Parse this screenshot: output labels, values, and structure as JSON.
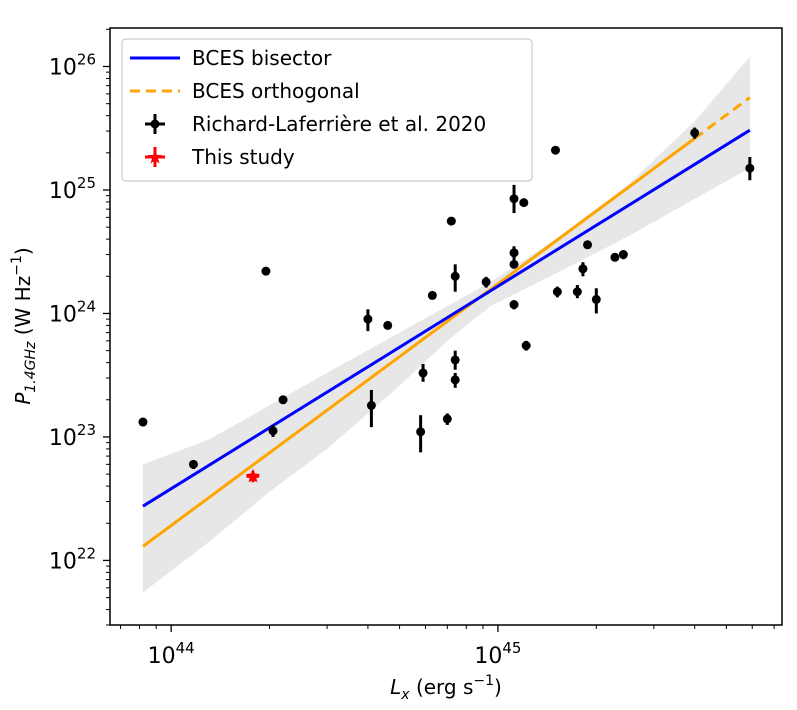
{
  "chart_data": {
    "type": "scatter",
    "x_scale": "log",
    "y_scale": "log",
    "xlim": [
      6.5e+43,
      7.4e+45
    ],
    "ylim": [
      3e+21,
      2.05e+26
    ],
    "xlabel": {
      "main": "L",
      "sub": "x",
      "rest": " (erg s",
      "sup": "−1",
      "close": ")"
    },
    "ylabel": {
      "main": "P",
      "sub": "1.4GHz",
      "rest": " (W Hz",
      "sup": "−1",
      "close": ")"
    },
    "x_ticks": [
      {
        "value": 1e+44,
        "base": "10",
        "exp": "44"
      },
      {
        "value": 1e+45,
        "base": "10",
        "exp": "45"
      }
    ],
    "y_ticks": [
      {
        "value": 1e+22,
        "base": "10",
        "exp": "22"
      },
      {
        "value": 1e+23,
        "base": "10",
        "exp": "23"
      },
      {
        "value": 1e+24,
        "base": "10",
        "exp": "24"
      },
      {
        "value": 1e+25,
        "base": "10",
        "exp": "25"
      },
      {
        "value": 1e+26,
        "base": "10",
        "exp": "26"
      }
    ],
    "legend": {
      "position": "top-left",
      "entries": [
        {
          "key": "bisector",
          "label": "BCES bisector",
          "style": "line",
          "color": "#0000ff"
        },
        {
          "key": "orthogonal",
          "label": "BCES orthogonal",
          "style": "dashed",
          "color": "#ffa500"
        },
        {
          "key": "richard",
          "label": "Richard-Laferrière et al. 2020",
          "style": "errorbar",
          "color": "#000000"
        },
        {
          "key": "thisstudy",
          "label": "This study",
          "style": "errorbar",
          "color": "#ff0000"
        }
      ]
    },
    "fits": {
      "bisector": {
        "x": [
          8.2e+43,
          5.9e+45
        ],
        "y": [
          2.75e+22,
          3.05e+25
        ],
        "color": "#0000ff"
      },
      "orthogonal": {
        "x": [
          8.2e+43,
          5.9e+45
        ],
        "y": [
          1.3e+22,
          5.6e+25
        ],
        "color": "#ffa500",
        "dash_from_x": 4e+45
      },
      "band": {
        "x": [
          8.2e+43,
          1.3e+44,
          2e+44,
          3e+44,
          5e+44,
          7e+44,
          9.5e+44,
          1.5e+45,
          2.5e+45,
          4e+45,
          5.9e+45
        ],
        "upper": [
          6e+22,
          9.5e+22,
          1.8e+23,
          3.3e+23,
          7e+23,
          1.15e+24,
          1.8e+24,
          4e+24,
          1.1e+25,
          3.6e+25,
          1.2e+26
        ],
        "lower": [
          5.5e+21,
          1.4e+22,
          3.6e+22,
          8e+22,
          2.6e+23,
          6e+23,
          1.15e+24,
          2.1e+24,
          4.2e+24,
          8.5e+24,
          1.5e+25
        ],
        "color": "#d3d3d3"
      }
    },
    "series": [
      {
        "name": "Richard-Laferrière et al. 2020",
        "color": "#000000",
        "points": [
          {
            "x": 8.2e+43,
            "y": 1.32e+23,
            "ylo": 1.22e+23,
            "yhi": 1.42e+23
          },
          {
            "x": 1.17e+44,
            "y": 6e+22,
            "ylo": 5.5e+22,
            "yhi": 6.5e+22
          },
          {
            "x": 1.95e+44,
            "y": 2.2e+24
          },
          {
            "x": 2.05e+44,
            "y": 1.12e+23,
            "ylo": 1e+23,
            "yhi": 1.25e+23
          },
          {
            "x": 2.2e+44,
            "y": 2e+23
          },
          {
            "x": 4e+44,
            "y": 9e+23,
            "ylo": 7.2e+23,
            "yhi": 1.08e+24
          },
          {
            "x": 4.1e+44,
            "y": 1.8e+23,
            "ylo": 1.2e+23,
            "yhi": 2.4e+23
          },
          {
            "x": 4.6e+44,
            "y": 8e+23
          },
          {
            "x": 5.8e+44,
            "y": 1.1e+23,
            "ylo": 7.5e+22,
            "yhi": 1.5e+23
          },
          {
            "x": 5.9e+44,
            "y": 3.3e+23,
            "ylo": 2.8e+23,
            "yhi": 3.9e+23
          },
          {
            "x": 6.3e+44,
            "y": 1.4e+24
          },
          {
            "x": 7e+44,
            "y": 1.4e+23,
            "ylo": 1.25e+23,
            "yhi": 1.55e+23
          },
          {
            "x": 7.2e+44,
            "y": 5.6e+24
          },
          {
            "x": 7.4e+44,
            "y": 2e+24,
            "ylo": 1.5e+24,
            "yhi": 2.5e+24
          },
          {
            "x": 7.4e+44,
            "y": 4.2e+23,
            "ylo": 3.5e+23,
            "yhi": 5e+23
          },
          {
            "x": 7.4e+44,
            "y": 2.9e+23,
            "ylo": 2.5e+23,
            "yhi": 3.3e+23
          },
          {
            "x": 9.2e+44,
            "y": 1.8e+24,
            "ylo": 1.62e+24,
            "yhi": 1.98e+24
          },
          {
            "x": 1.12e+45,
            "y": 8.5e+24,
            "ylo": 6.5e+24,
            "yhi": 1.1e+25
          },
          {
            "x": 1.12e+45,
            "y": 3.1e+24,
            "ylo": 2.7e+24,
            "yhi": 3.5e+24
          },
          {
            "x": 1.12e+45,
            "y": 2.5e+24
          },
          {
            "x": 1.12e+45,
            "y": 1.18e+24,
            "ylo": 1.08e+24,
            "yhi": 1.28e+24
          },
          {
            "x": 1.2e+45,
            "y": 7.9e+24
          },
          {
            "x": 1.22e+45,
            "y": 5.5e+23,
            "ylo": 5e+23,
            "yhi": 6e+23
          },
          {
            "x": 1.5e+45,
            "y": 2.1e+25
          },
          {
            "x": 1.52e+45,
            "y": 1.5e+24,
            "ylo": 1.35e+24,
            "yhi": 1.65e+24
          },
          {
            "x": 1.75e+45,
            "y": 1.5e+24,
            "ylo": 1.33e+24,
            "yhi": 1.7e+24
          },
          {
            "x": 1.82e+45,
            "y": 2.3e+24,
            "ylo": 2e+24,
            "yhi": 2.6e+24
          },
          {
            "x": 1.88e+45,
            "y": 3.6e+24
          },
          {
            "x": 2e+45,
            "y": 1.3e+24,
            "ylo": 1e+24,
            "yhi": 1.6e+24
          },
          {
            "x": 2.28e+45,
            "y": 2.85e+24
          },
          {
            "x": 2.42e+45,
            "y": 3e+24,
            "ylo": 2.75e+24,
            "yhi": 3.25e+24
          },
          {
            "x": 4e+45,
            "y": 2.9e+25,
            "ylo": 2.6e+25,
            "yhi": 3.2e+25
          },
          {
            "x": 5.9e+45,
            "y": 1.5e+25,
            "ylo": 1.2e+25,
            "yhi": 1.85e+25
          }
        ]
      },
      {
        "name": "This study",
        "color": "#ff0000",
        "points": [
          {
            "x": 1.78e+44,
            "y": 4.8e+22,
            "ylo": 4.3e+22,
            "yhi": 5.3e+22,
            "xlo": 1.7e+44,
            "xhi": 1.86e+44
          }
        ]
      }
    ]
  }
}
